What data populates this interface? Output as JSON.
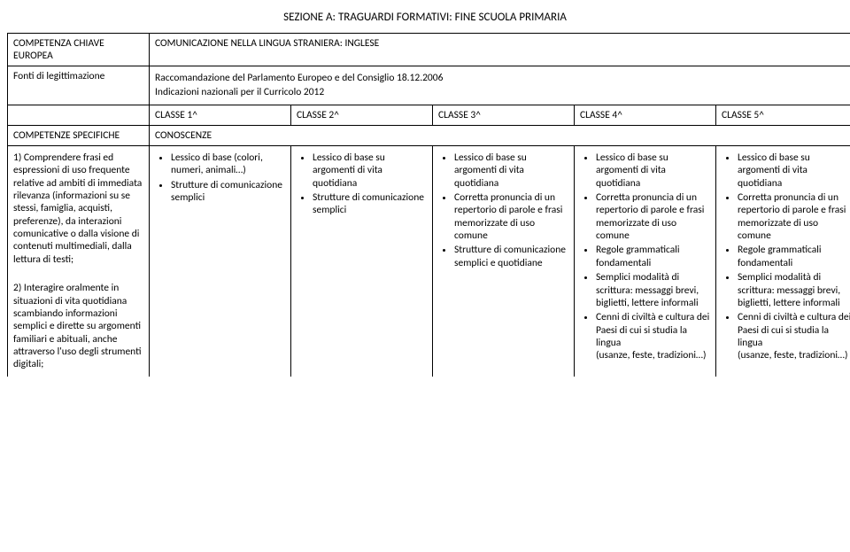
{
  "section_title": "SEZIONE A: TRAGUARDI FORMATIVI: FINE SCUOLA PRIMARIA",
  "header": {
    "row1_label": "COMPETENZA CHIAVE EUROPEA",
    "row1_value": "COMUNICAZIONE NELLA LINGUA STRANIERA: INGLESE",
    "row2_label": "Fonti di legittimazione",
    "row2_value_line1": "Raccomandazione del Parlamento Europeo e del Consiglio 18.12.2006",
    "row2_value_line2": "Indicazioni nazionali per il Curricolo 2012",
    "row3_empty": "",
    "row3_c1": "CLASSE 1^",
    "row3_c2": "CLASSE 2^",
    "row3_c3": "CLASSE 3^",
    "row3_c4": "CLASSE 4^",
    "row3_c5": "CLASSE 5^",
    "row4_label": "COMPETENZE SPECIFICHE",
    "row4_value": "CONOSCENZE"
  },
  "leftcol": {
    "p1": "1) Comprendere frasi ed espressioni di uso frequente relative ad ambiti di immediata rilevanza (informazioni su se stessi, famiglia, acquisti, preferenze), da interazioni comunicative o dalla visione di contenuti multimediali, dalla lettura di testi;",
    "p2": "2) Interagire oralmente in situazioni di vita quotidiana scambiando informazioni semplici e dirette su argomenti familiari e abituali, anche attraverso l'uso degli strumenti digitali;"
  },
  "classe1": {
    "b1": "Lessico di base (colori, numeri, animali…)",
    "b2": "Strutture di comunicazione semplici"
  },
  "classe2": {
    "b1": "Lessico di base su argomenti di vita quotidiana",
    "b2": "Strutture di comunicazione semplici"
  },
  "classe3": {
    "b1": "Lessico di base su argomenti di vita quotidiana",
    "b2": "Corretta pronuncia di un repertorio di parole e frasi memorizzate di uso comune",
    "b3": "Strutture di comunicazione semplici e quotidiane"
  },
  "classe4": {
    "b1": "Lessico di base su argomenti di vita quotidiana",
    "b2": "Corretta pronuncia di un repertorio di parole e frasi memorizzate di uso comune",
    "b3": "Regole grammaticali fondamentali",
    "b4": "Semplici modalità di scrittura: messaggi brevi, biglietti, lettere informali",
    "b5": "Cenni di civiltà e cultura dei Paesi di cui si studia la lingua",
    "b5_sub": "(usanze, feste, tradizioni…)"
  },
  "classe5": {
    "b1": "Lessico di base su argomenti di vita quotidiana",
    "b2": "Corretta pronuncia di un repertorio di parole e frasi memorizzate di uso comune",
    "b3": "Regole grammaticali fondamentali",
    "b4": "Semplici modalità di scrittura: messaggi brevi, biglietti, lettere informali",
    "b5": "Cenni di civiltà e cultura dei Paesi di cui si studia la lingua",
    "b5_sub": "(usanze, feste, tradizioni…)"
  }
}
